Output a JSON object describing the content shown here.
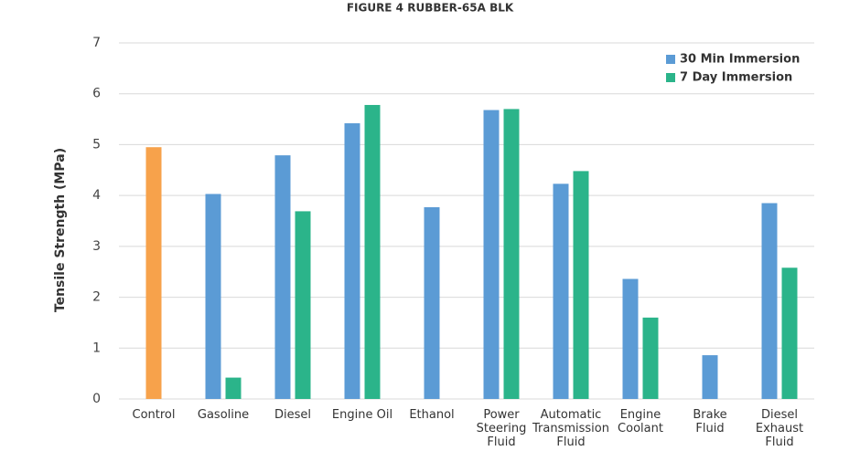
{
  "chart_data": {
    "type": "bar",
    "title": "FIGURE 4 RUBBER-65A BLK",
    "y_label": "Tensile Strength (MPa)",
    "categories": [
      "Control",
      "Gasoline",
      "Diesel",
      "Engine Oil",
      "Ethanol",
      "Power\nSteering\nFluid",
      "Automatic\nTransmission\nFluid",
      "Engine\nCoolant",
      "Brake\nFluid",
      "Diesel\nExhaust\nFluid"
    ],
    "series": [
      {
        "name": "30 Min Immersion",
        "color": "#5b9bd5",
        "colors": [
          "#f7a24b",
          null,
          null,
          null,
          null,
          null,
          null,
          null,
          null,
          null
        ],
        "values": [
          4.95,
          4.03,
          4.79,
          5.42,
          3.77,
          5.68,
          4.23,
          2.36,
          0.86,
          3.85
        ]
      },
      {
        "name": "7 Day Immersion",
        "color": "#2bb48a",
        "values": [
          null,
          0.42,
          3.69,
          5.78,
          null,
          5.7,
          4.48,
          1.6,
          null,
          2.58
        ]
      }
    ],
    "ylim": [
      0,
      7
    ],
    "yticks": [
      0,
      1,
      2,
      3,
      4,
      5,
      6,
      7
    ],
    "grid": true,
    "legend": "top-right"
  }
}
